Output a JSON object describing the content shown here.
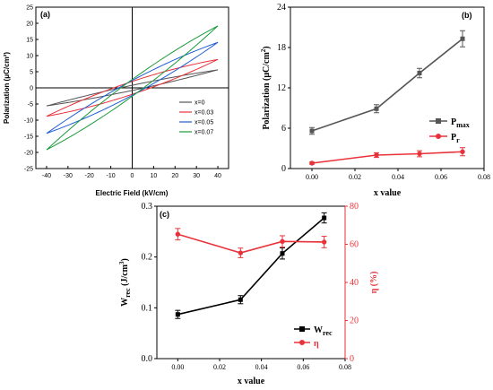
{
  "chart_data": [
    {
      "panel": "(a)",
      "type": "line",
      "xlabel": "Electric Field (kV/cm)",
      "ylabel": "Polarization (μC/cm²)",
      "xlim": [
        -45,
        45
      ],
      "ylim": [
        -25,
        25
      ],
      "xticks": [
        -40,
        -30,
        -20,
        -10,
        0,
        10,
        20,
        30,
        40
      ],
      "yticks": [
        -25,
        -20,
        -15,
        -10,
        -5,
        0,
        5,
        10,
        15,
        20,
        25
      ],
      "legend_position": "bottom-right",
      "series": [
        {
          "name": "x=0",
          "color": "#555555",
          "Emax": 40,
          "Pmax": 5.6,
          "Pr": 0.8,
          "Ec": 4
        },
        {
          "name": "x=0.03",
          "color": "#e8323a",
          "Emax": 40,
          "Pmax": 8.8,
          "Pr": 2.0,
          "Ec": 5
        },
        {
          "name": "x=0.05",
          "color": "#1f5fd6",
          "Emax": 40,
          "Pmax": 14.1,
          "Pr": 2.3,
          "Ec": 5
        },
        {
          "name": "x=0.07",
          "color": "#1a9a3a",
          "Emax": 40,
          "Pmax": 19.2,
          "Pr": 2.6,
          "Ec": 6
        }
      ]
    },
    {
      "panel": "(b)",
      "type": "line",
      "xlabel": "x  value",
      "ylabel_main": "Polarization (μC/cm",
      "ylabel_sup": "2",
      "ylabel_end": ")",
      "xlim": [
        -0.01,
        0.08
      ],
      "ylim": [
        0,
        24
      ],
      "xticks": [
        "0.00",
        "0.02",
        "0.04",
        "0.06",
        "0.08"
      ],
      "yticks": [
        "0",
        "6",
        "12",
        "18",
        "24"
      ],
      "legend_position": "center-right",
      "x": [
        0,
        0.03,
        0.05,
        0.07
      ],
      "series": [
        {
          "name_main": "P",
          "name_sub": "max",
          "color": "#555555",
          "marker": "square",
          "values": [
            5.6,
            8.9,
            14.2,
            19.3
          ],
          "errors": [
            0.5,
            0.6,
            0.7,
            1.2
          ]
        },
        {
          "name_main": "P",
          "name_sub": "r",
          "color": "#e8323a",
          "marker": "circle",
          "values": [
            0.8,
            2.0,
            2.2,
            2.5
          ],
          "errors": [
            0.15,
            0.35,
            0.45,
            0.6
          ]
        }
      ]
    },
    {
      "panel": "(c)",
      "type": "line",
      "xlabel": "x value",
      "ylabel_left_main": "W",
      "ylabel_left_sub": "rec",
      "ylabel_left_end": " (J/cm",
      "ylabel_left_sup": "3",
      "ylabel_left_close": ")",
      "ylabel_right": "η (%)",
      "xlim": [
        -0.01,
        0.08
      ],
      "ylim_left": [
        0,
        0.3
      ],
      "ylim_right": [
        0,
        80
      ],
      "xticks": [
        "0.00",
        "0.02",
        "0.04",
        "0.06",
        "0.08"
      ],
      "yticks_left": [
        "0.0",
        "0.1",
        "0.2",
        "0.3"
      ],
      "yticks_right": [
        "0",
        "20",
        "40",
        "60",
        "80"
      ],
      "legend_position": "bottom-right",
      "x": [
        0,
        0.03,
        0.05,
        0.07
      ],
      "series": [
        {
          "name_main": "W",
          "name_sub": "rec",
          "axis": "left",
          "color": "#000000",
          "marker": "square",
          "values": [
            0.087,
            0.116,
            0.207,
            0.277
          ],
          "errors": [
            0.008,
            0.008,
            0.011,
            0.01
          ]
        },
        {
          "name_main": "η",
          "name_sub": "",
          "axis": "right",
          "color": "#e8323a",
          "marker": "circle",
          "values": [
            65.3,
            55.5,
            61.5,
            61.2
          ],
          "errors": [
            3.0,
            2.5,
            3.0,
            3.0
          ]
        }
      ]
    }
  ]
}
